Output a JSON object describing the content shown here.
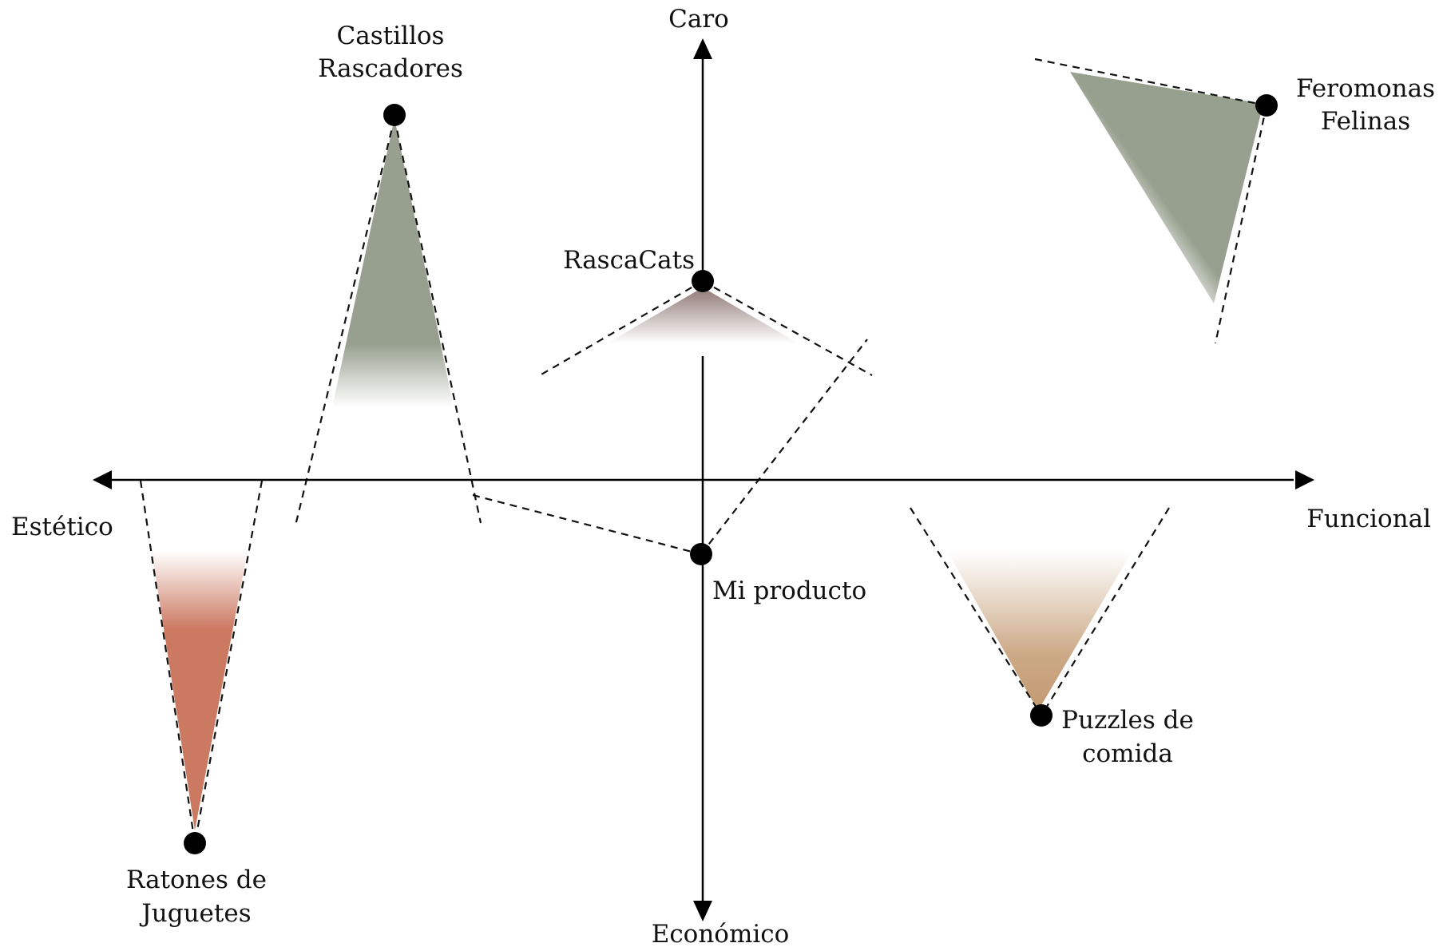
{
  "axes": {
    "top": "Caro",
    "bottom": "Económico",
    "left": "Estético",
    "right": "Funcional"
  },
  "products": [
    {
      "id": "castillos",
      "label_lines": [
        "Castillos",
        "Rascadores"
      ],
      "color": "#97a08f"
    },
    {
      "id": "feromonas",
      "label_lines": [
        "Feromonas",
        "Felinas"
      ],
      "color": "#97a08f"
    },
    {
      "id": "rascacats",
      "label_lines": [
        "RascaCats"
      ],
      "color": "#8e7773"
    },
    {
      "id": "mi-producto",
      "label_lines": [
        "Mi producto"
      ],
      "color": "#000000"
    },
    {
      "id": "ratones",
      "label_lines": [
        "Ratones de",
        "Juguetes"
      ],
      "color": "#cc7962"
    },
    {
      "id": "puzzles",
      "label_lines": [
        "Puzzles de",
        "comida"
      ],
      "color": "#c39a71"
    }
  ]
}
